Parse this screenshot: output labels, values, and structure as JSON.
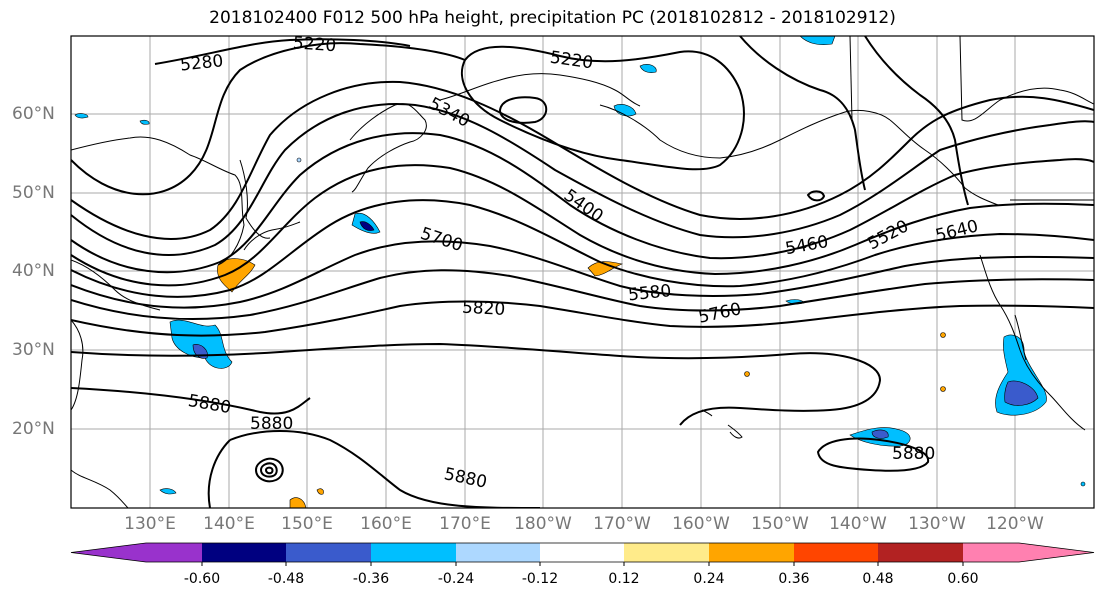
{
  "title": "2018102400 F012 500 hPa height, precipitation PC (2018102812 - 2018102912)",
  "lat_labels": [
    "60°N",
    "50°N",
    "40°N",
    "30°N",
    "20°N"
  ],
  "lon_labels": [
    "130°E",
    "140°E",
    "150°E",
    "160°E",
    "170°E",
    "180°W",
    "170°W",
    "160°W",
    "150°W",
    "140°W",
    "130°W",
    "120°W"
  ],
  "contour_labels": [
    "5220",
    "5280",
    "5220",
    "5340",
    "5400",
    "5700",
    "5460",
    "5520",
    "5640",
    "5580",
    "5760",
    "5820",
    "5880",
    "5880",
    "5880",
    "5880"
  ],
  "colorbar": {
    "colors": [
      "#9932cc",
      "#000080",
      "#3a5bcc",
      "#00bfff",
      "#add8ff",
      "#ffffff",
      "#ffeb8a",
      "#ffa500",
      "#ff4500",
      "#b22222",
      "#ff80b0"
    ],
    "tick_labels": [
      "-0.60",
      "-0.48",
      "-0.36",
      "-0.24",
      "-0.12",
      "0.12",
      "0.24",
      "0.36",
      "0.48",
      "0.60"
    ]
  }
}
